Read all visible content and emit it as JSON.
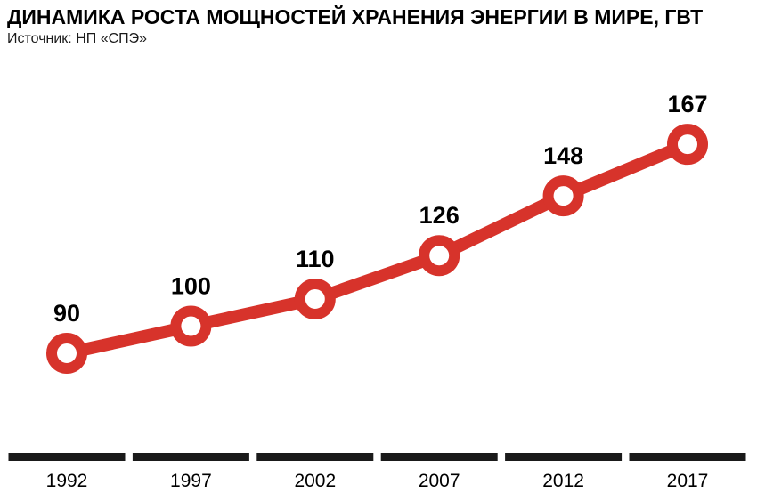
{
  "header": {
    "title": "ДИНАМИКА РОСТА МОЩНОСТЕЙ ХРАНЕНИЯ ЭНЕРГИИ В МИРЕ, ГВТ",
    "source": "Источник: НП  «СПЭ»"
  },
  "chart_data": {
    "type": "line",
    "title": "ДИНАМИКА РОСТА МОЩНОСТЕЙ ХРАНЕНИЯ ЭНЕРГИИ В МИРЕ, ГВТ",
    "source": "Источник: НП  «СПЭ»",
    "unit": "ГВт",
    "categories": [
      "1992",
      "1997",
      "2002",
      "2007",
      "2012",
      "2017"
    ],
    "values": [
      90,
      100,
      110,
      126,
      148,
      167
    ],
    "xlabel": "",
    "ylabel": "",
    "ylim": [
      80,
      180
    ],
    "grid": false,
    "legend": "none",
    "data_labels": true,
    "colors": {
      "line": "#d7332b",
      "marker_fill": "#ffffff",
      "axis": "#1a1a1a",
      "text": "#000000",
      "background": "#ffffff"
    }
  }
}
